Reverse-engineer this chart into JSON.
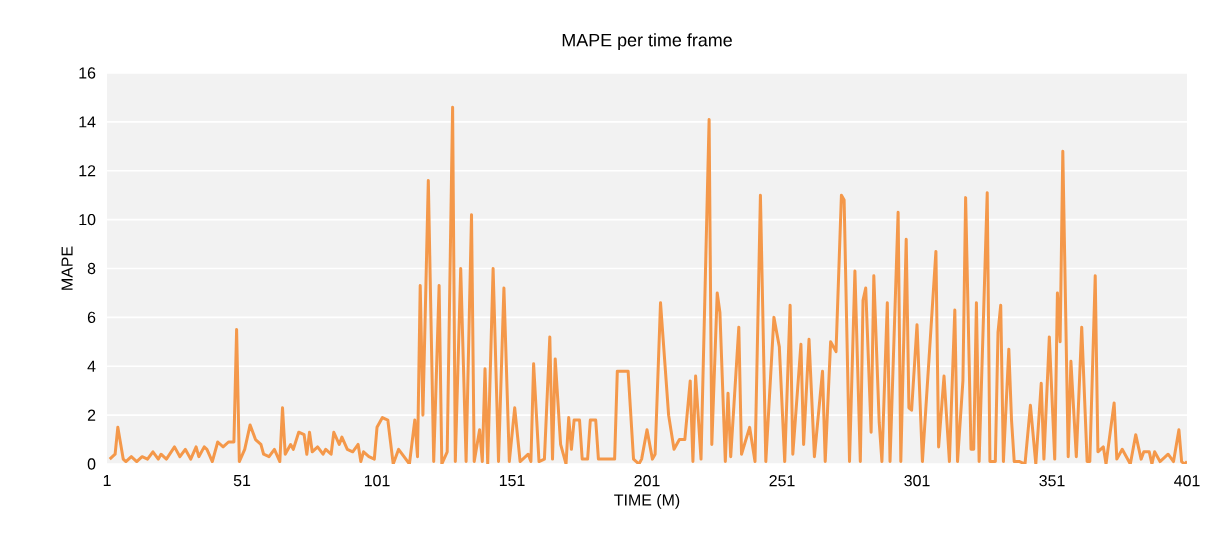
{
  "chart_data": {
    "type": "line",
    "title": "MAPE per time frame",
    "xlabel": "TIME (M)",
    "ylabel": "MAPE",
    "color": "#f4984a",
    "grid": "y",
    "xlim": [
      1,
      401
    ],
    "ylim": [
      0,
      16
    ],
    "xticks": [
      1,
      51,
      101,
      151,
      201,
      251,
      301,
      351,
      401
    ],
    "yticks": [
      0,
      2,
      4,
      6,
      8,
      10,
      12,
      14,
      16
    ],
    "x": [
      2,
      4,
      5,
      7,
      8,
      10,
      12,
      14,
      16,
      18,
      20,
      21,
      23,
      26,
      28,
      30,
      32,
      34,
      35,
      37,
      38,
      40,
      42,
      44,
      46,
      48,
      49,
      50,
      52,
      54,
      56,
      58,
      59,
      61,
      63,
      65,
      66,
      67,
      69,
      70,
      72,
      74,
      75,
      76,
      77,
      79,
      81,
      82,
      84,
      85,
      87,
      88,
      90,
      92,
      94,
      95,
      96,
      98,
      100,
      101,
      103,
      105,
      107,
      109,
      111,
      113,
      115,
      116,
      117,
      118,
      120,
      122,
      124,
      125,
      127,
      129,
      130,
      132,
      134,
      136,
      137,
      139,
      140,
      141,
      142,
      144,
      146,
      148,
      150,
      152,
      154,
      157,
      158,
      159,
      161,
      163,
      165,
      166,
      167,
      169,
      171,
      172,
      173,
      174,
      176,
      177,
      179,
      180,
      182,
      183,
      189,
      190,
      194,
      196,
      198,
      199,
      201,
      203,
      204,
      206,
      209,
      211,
      213,
      215,
      217,
      218,
      219,
      221,
      224,
      225,
      227,
      228,
      230,
      231,
      232,
      235,
      236,
      239,
      241,
      243,
      245,
      248,
      250,
      252,
      254,
      255,
      258,
      259,
      261,
      263,
      266,
      267,
      269,
      271,
      273,
      274,
      276,
      278,
      280,
      281,
      282,
      284,
      285,
      287,
      288,
      290,
      291,
      294,
      295,
      297,
      298,
      299,
      301,
      303,
      308,
      309,
      311,
      313,
      315,
      316,
      318,
      319,
      321,
      322,
      323,
      324,
      327,
      328,
      330,
      331,
      332,
      333,
      335,
      336,
      337,
      339,
      341,
      343,
      345,
      347,
      348,
      350,
      352,
      353,
      354,
      355,
      357,
      358,
      360,
      362,
      364,
      365,
      367,
      368,
      370,
      371,
      374,
      375,
      377,
      380,
      382,
      384,
      385,
      387,
      388,
      389,
      391,
      393,
      394,
      396,
      398,
      399,
      400,
      401
    ],
    "values": [
      0.2,
      0.4,
      1.5,
      0.2,
      0.1,
      0.3,
      0.1,
      0.3,
      0.2,
      0.5,
      0.2,
      0.4,
      0.2,
      0.7,
      0.3,
      0.6,
      0.2,
      0.7,
      0.3,
      0.7,
      0.6,
      0.1,
      0.9,
      0.7,
      0.9,
      0.9,
      5.5,
      0.1,
      0.6,
      1.6,
      1.0,
      0.8,
      0.4,
      0.3,
      0.6,
      0.1,
      2.3,
      0.4,
      0.8,
      0.6,
      1.3,
      1.2,
      0.4,
      1.3,
      0.5,
      0.7,
      0.4,
      0.6,
      0.4,
      1.3,
      0.8,
      1.1,
      0.6,
      0.5,
      0.8,
      0.1,
      0.5,
      0.3,
      0.2,
      1.5,
      1.9,
      1.8,
      0.0,
      0.6,
      0.3,
      0.0,
      1.8,
      0.3,
      7.3,
      2.0,
      11.6,
      0.1,
      7.3,
      0.0,
      0.5,
      14.6,
      0.1,
      8.0,
      0.1,
      10.2,
      0.1,
      1.4,
      0.1,
      3.9,
      0.0,
      8.0,
      0.1,
      7.2,
      0.1,
      2.3,
      0.1,
      0.4,
      0.1,
      4.1,
      0.1,
      0.2,
      5.2,
      0.2,
      4.3,
      0.8,
      0.0,
      1.9,
      0.6,
      1.8,
      1.8,
      0.2,
      0.2,
      1.8,
      1.8,
      0.2,
      0.2,
      3.8,
      3.8,
      0.2,
      0.0,
      0.2,
      1.4,
      0.2,
      0.4,
      6.6,
      2.0,
      0.6,
      1.0,
      1.0,
      3.4,
      0.1,
      3.6,
      0.2,
      14.1,
      0.8,
      7.0,
      6.2,
      0.1,
      2.9,
      0.3,
      5.6,
      0.4,
      1.5,
      0.1,
      11.0,
      0.1,
      6.0,
      4.8,
      0.1,
      6.5,
      0.4,
      4.9,
      0.8,
      5.1,
      0.3,
      3.8,
      0.1,
      5.0,
      4.6,
      11.0,
      10.8,
      0.1,
      7.9,
      0.1,
      6.7,
      7.2,
      1.3,
      7.7,
      1.7,
      0.1,
      6.6,
      0.1,
      10.3,
      0.1,
      9.2,
      2.3,
      2.2,
      5.7,
      0.1,
      8.7,
      0.7,
      3.6,
      0.1,
      6.3,
      0.1,
      3.4,
      10.9,
      0.6,
      0.6,
      6.6,
      0.1,
      11.1,
      0.1,
      0.1,
      5.4,
      6.5,
      0.1,
      4.7,
      1.8,
      0.1,
      0.1,
      0.0,
      2.4,
      0.0,
      3.3,
      0.2,
      5.2,
      0.2,
      7.0,
      5.0,
      12.8,
      0.3,
      4.2,
      0.3,
      5.6,
      0.1,
      0.1,
      7.7,
      0.5,
      0.7,
      0.0,
      2.5,
      0.2,
      0.6,
      0.0,
      1.2,
      0.2,
      0.5,
      0.5,
      0.0,
      0.5,
      0.1,
      0.3,
      0.4,
      0.1,
      1.4,
      0.1,
      0.0,
      0.1
    ]
  }
}
